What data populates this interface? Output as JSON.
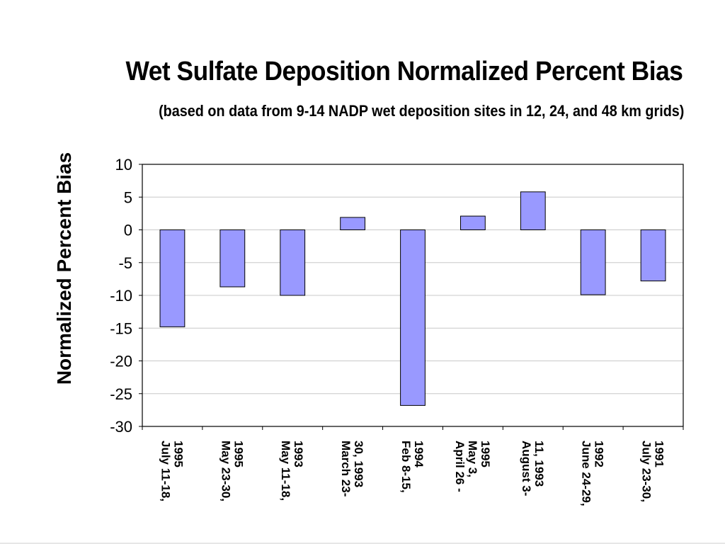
{
  "chart_data": {
    "type": "bar",
    "title": "Wet Sulfate Deposition Normalized Percent Bias",
    "subtitle": "(based on data from 9-14 NADP wet deposition sites in 12, 24, and 48 km grids)",
    "ylabel": "Normalized Percent Bias",
    "xlabel": "",
    "categories": [
      [
        "July 11-18,",
        "1995"
      ],
      [
        "May 23-30,",
        "1995"
      ],
      [
        "May 11-18,",
        "1993"
      ],
      [
        "March 23-",
        "30, 1993"
      ],
      [
        "Feb 8-15,",
        "1994"
      ],
      [
        "April 26 -",
        "May 3,",
        "1995"
      ],
      [
        "August 3-",
        "11, 1993"
      ],
      [
        "June 24-29,",
        "1992"
      ],
      [
        "July 23-30,",
        "1991"
      ]
    ],
    "values": [
      -14.8,
      -8.7,
      -10.0,
      1.9,
      -26.8,
      2.1,
      5.8,
      -9.9,
      -7.8
    ],
    "ylim": [
      -30,
      10
    ],
    "yticks": [
      10,
      5,
      0,
      -5,
      -10,
      -15,
      -20,
      -25,
      -30
    ],
    "grid": true,
    "legend": "none",
    "colors": {
      "bar_fill": "#9999ff",
      "bar_stroke": "#000000",
      "grid": "#c8c8c8",
      "axis": "#000000"
    }
  }
}
